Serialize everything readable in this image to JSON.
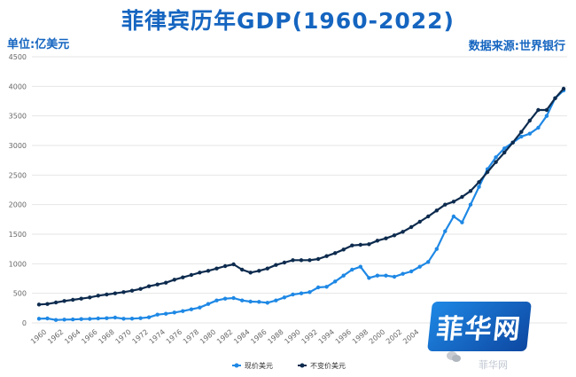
{
  "header": {
    "title": "菲律宾历年GDP(1960-2022)",
    "unit": "单位:亿美元",
    "source": "数据来源:世界银行"
  },
  "watermark": {
    "logo_text": "菲华网",
    "site_text": "菲华网"
  },
  "colors": {
    "current": "#1e88e5",
    "constant": "#0d2b4e",
    "grid": "#e6e6e6"
  },
  "chart_data": {
    "type": "line",
    "title": "菲律宾历年GDP(1960-2022)",
    "ylim": [
      0,
      4500
    ],
    "yticks": [
      0,
      500,
      1000,
      1500,
      2000,
      2500,
      3000,
      3500,
      4000,
      4500
    ],
    "xtick_labels": [
      "1960",
      "1962",
      "1964",
      "1966",
      "1968",
      "1970",
      "1972",
      "1974",
      "1976",
      "1978",
      "1980",
      "1982",
      "1984",
      "1986",
      "1988",
      "1990",
      "1992",
      "1994",
      "1996",
      "1998",
      "2000",
      "2002",
      "2004"
    ],
    "grid": true,
    "legend_position": "bottom",
    "x": [
      1960,
      1961,
      1962,
      1963,
      1964,
      1965,
      1966,
      1967,
      1968,
      1969,
      1970,
      1971,
      1972,
      1973,
      1974,
      1975,
      1976,
      1977,
      1978,
      1979,
      1980,
      1981,
      1982,
      1983,
      1984,
      1985,
      1986,
      1987,
      1988,
      1989,
      1990,
      1991,
      1992,
      1993,
      1994,
      1995,
      1996,
      1997,
      1998,
      1999,
      2000,
      2001,
      2002,
      2003,
      2004,
      2005,
      2006,
      2007,
      2008,
      2009,
      2010,
      2011,
      2012,
      2013,
      2014,
      2015,
      2016,
      2017,
      2018,
      2019,
      2020,
      2021,
      2022
    ],
    "series": [
      {
        "name": "现价美元",
        "values": [
          70,
          75,
          50,
          55,
          58,
          65,
          68,
          75,
          80,
          90,
          70,
          72,
          80,
          95,
          140,
          155,
          175,
          200,
          230,
          260,
          320,
          380,
          410,
          420,
          380,
          360,
          355,
          340,
          380,
          430,
          480,
          500,
          520,
          600,
          610,
          700,
          800,
          900,
          950,
          760,
          800,
          800,
          780,
          830,
          870,
          950,
          1030,
          1250,
          1550,
          1800,
          1700,
          2000,
          2300,
          2600,
          2800,
          2950,
          3050,
          3150,
          3200,
          3300,
          3500,
          3800,
          3930
        ]
      },
      {
        "name": "不变价美元",
        "values": [
          310,
          320,
          345,
          370,
          390,
          410,
          430,
          460,
          480,
          500,
          520,
          545,
          575,
          620,
          650,
          680,
          730,
          770,
          810,
          850,
          880,
          920,
          960,
          990,
          900,
          850,
          880,
          920,
          980,
          1020,
          1060,
          1060,
          1060,
          1080,
          1130,
          1180,
          1240,
          1310,
          1320,
          1330,
          1390,
          1430,
          1480,
          1540,
          1620,
          1710,
          1800,
          1900,
          2000,
          2050,
          2130,
          2230,
          2380,
          2550,
          2720,
          2880,
          3050,
          3230,
          3420,
          3600,
          3600,
          3800,
          3960
        ]
      }
    ]
  }
}
